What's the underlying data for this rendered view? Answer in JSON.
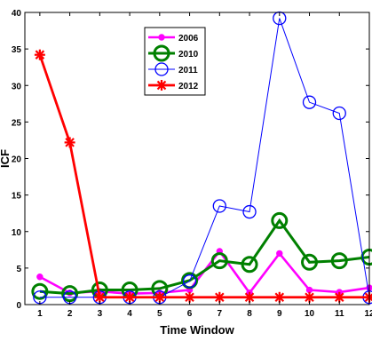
{
  "chart_data": {
    "type": "line",
    "xlabel": "Time Window",
    "ylabel": "ICF",
    "x": [
      1,
      2,
      3,
      4,
      5,
      6,
      7,
      8,
      9,
      10,
      11,
      12
    ],
    "xlim": [
      0.5,
      12
    ],
    "ylim": [
      0,
      40
    ],
    "xticks": [
      1,
      2,
      3,
      4,
      5,
      6,
      7,
      8,
      9,
      10,
      11,
      12
    ],
    "yticks": [
      0,
      5,
      10,
      15,
      20,
      25,
      30,
      35,
      40
    ],
    "grid": false,
    "legend_position": "top-center",
    "series": [
      {
        "name": "2006",
        "color": "#ff00ff",
        "marker": "dot",
        "values": [
          3.8,
          1.6,
          1.8,
          1.5,
          1.6,
          2.0,
          7.3,
          1.6,
          7.0,
          2.0,
          1.7,
          2.3
        ]
      },
      {
        "name": "2010",
        "color": "#008000",
        "marker": "circle-large",
        "values": [
          1.8,
          1.5,
          2.0,
          2.0,
          2.2,
          3.3,
          6.0,
          5.5,
          11.5,
          5.8,
          6.0,
          6.5
        ]
      },
      {
        "name": "2011",
        "color": "#0000ff",
        "marker": "circle-open",
        "values": [
          1.0,
          1.0,
          1.0,
          1.0,
          1.0,
          3.2,
          13.5,
          12.7,
          39.2,
          27.7,
          26.2,
          1.0
        ]
      },
      {
        "name": "2012",
        "color": "#ff0000",
        "marker": "star",
        "values": [
          34.2,
          22.2,
          1.0,
          1.0,
          1.0,
          1.0,
          1.0,
          1.0,
          1.0,
          1.0,
          1.0,
          1.0
        ]
      }
    ]
  }
}
